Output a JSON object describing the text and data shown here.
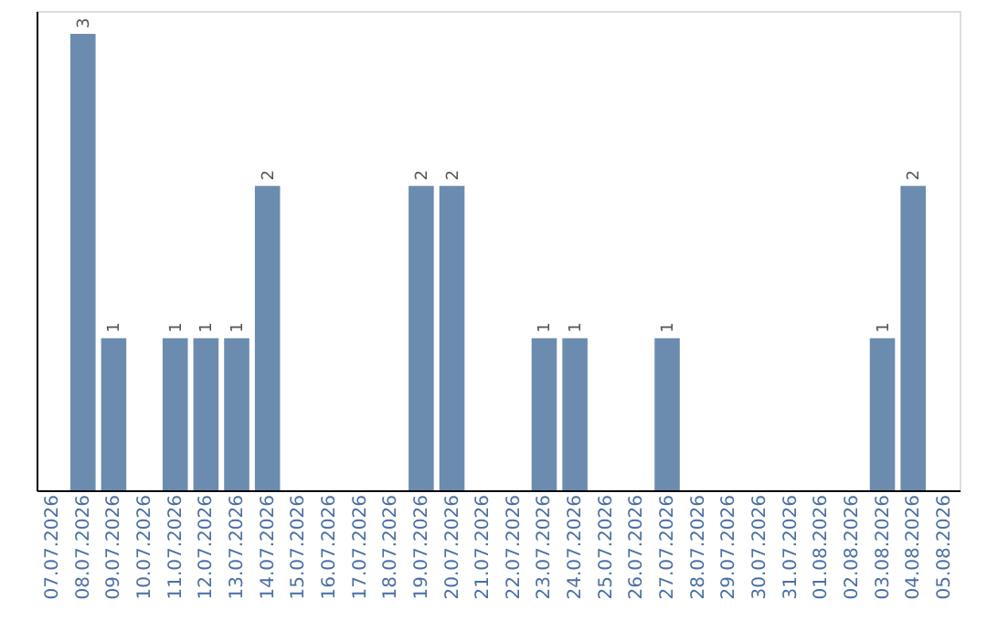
{
  "chart_data": {
    "type": "bar",
    "categories": [
      "07.07.2026",
      "08.07.2026",
      "09.07.2026",
      "10.07.2026",
      "11.07.2026",
      "12.07.2026",
      "13.07.2026",
      "14.07.2026",
      "15.07.2026",
      "16.07.2026",
      "17.07.2026",
      "18.07.2026",
      "19.07.2026",
      "20.07.2026",
      "21.07.2026",
      "22.07.2026",
      "23.07.2026",
      "24.07.2026",
      "25.07.2026",
      "26.07.2026",
      "27.07.2026",
      "28.07.2026",
      "29.07.2026",
      "30.07.2026",
      "31.07.2026",
      "01.08.2026",
      "02.08.2026",
      "03.08.2026",
      "04.08.2026",
      "05.08.2026"
    ],
    "values": [
      0,
      3,
      1,
      0,
      1,
      1,
      1,
      2,
      0,
      0,
      0,
      0,
      2,
      2,
      0,
      0,
      1,
      1,
      0,
      0,
      1,
      0,
      0,
      0,
      0,
      0,
      0,
      1,
      2,
      0
    ],
    "value_labels": [
      null,
      "3",
      "1",
      null,
      "1",
      "1",
      "1",
      "2",
      null,
      null,
      null,
      null,
      "2",
      "2",
      null,
      null,
      "1",
      "1",
      null,
      null,
      "1",
      null,
      null,
      null,
      null,
      null,
      null,
      "1",
      "2",
      null
    ],
    "color": "#6b8cae",
    "ylim": [
      0,
      3.15
    ],
    "tick_labels": "x",
    "grid": false
  }
}
